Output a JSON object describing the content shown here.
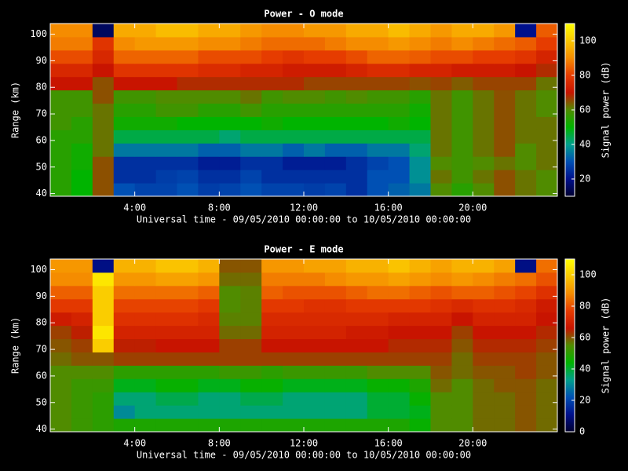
{
  "chart_data": [
    {
      "type": "heatmap",
      "title": "Power - O mode",
      "x_label": "Universal time - 09/05/2010 00:00:00 to 10/05/2010 00:00:00",
      "y_label": "Range (km)",
      "colorbar_label": "Signal power (dB)",
      "x_bins": [
        0,
        1,
        2,
        3,
        4,
        5,
        6,
        7,
        8,
        9,
        10,
        11,
        12,
        13,
        14,
        15,
        16,
        17,
        18,
        19,
        20,
        21,
        22,
        23,
        24
      ],
      "y_bins": [
        39,
        44,
        49,
        54,
        59,
        64,
        69,
        74,
        79,
        84,
        89,
        94,
        99,
        104
      ],
      "xlim": [
        0,
        24
      ],
      "ylim": [
        39,
        104
      ],
      "zlim": [
        10,
        110
      ],
      "xticks": [
        {
          "value": 4,
          "label": "4:00"
        },
        {
          "value": 8,
          "label": "8:00"
        },
        {
          "value": 12,
          "label": "12:00"
        },
        {
          "value": 16,
          "label": "16:00"
        },
        {
          "value": 20,
          "label": "20:00"
        }
      ],
      "yticks": [
        40,
        50,
        60,
        70,
        80,
        90,
        100
      ],
      "zticks": [
        20,
        40,
        60,
        80,
        100
      ],
      "colormap": [
        "#000030",
        "#00108c",
        "#0050b4",
        "#00a08c",
        "#00b400",
        "#508c00",
        "#c81400",
        "#e63c00",
        "#f58c00",
        "#fac800",
        "#ffff00"
      ],
      "z": [
        [
          55,
          50,
          65,
          30,
          28,
          28,
          30,
          27,
          28,
          30,
          28,
          28,
          27,
          28,
          25,
          30,
          32,
          35,
          60,
          55,
          60,
          65,
          62,
          60
        ],
        [
          55,
          50,
          65,
          25,
          25,
          27,
          28,
          25,
          25,
          28,
          25,
          25,
          25,
          25,
          25,
          30,
          30,
          38,
          62,
          58,
          62,
          65,
          62,
          60
        ],
        [
          55,
          52,
          65,
          25,
          25,
          25,
          25,
          22,
          22,
          25,
          25,
          22,
          22,
          22,
          25,
          28,
          30,
          38,
          60,
          58,
          60,
          62,
          60,
          62
        ],
        [
          55,
          52,
          62,
          35,
          35,
          35,
          35,
          32,
          32,
          35,
          35,
          32,
          35,
          32,
          32,
          35,
          35,
          42,
          62,
          58,
          62,
          65,
          60,
          62
        ],
        [
          55,
          55,
          62,
          45,
          45,
          45,
          45,
          45,
          42,
          45,
          45,
          45,
          45,
          45,
          45,
          45,
          45,
          45,
          62,
          58,
          62,
          65,
          62,
          62
        ],
        [
          58,
          55,
          62,
          52,
          52,
          52,
          50,
          50,
          50,
          50,
          52,
          50,
          50,
          50,
          50,
          50,
          52,
          50,
          62,
          58,
          62,
          65,
          62,
          62
        ],
        [
          58,
          58,
          62,
          55,
          55,
          58,
          58,
          55,
          55,
          58,
          55,
          55,
          55,
          55,
          55,
          55,
          55,
          52,
          62,
          58,
          62,
          65,
          62,
          60
        ],
        [
          58,
          58,
          65,
          58,
          58,
          60,
          60,
          60,
          60,
          62,
          58,
          60,
          60,
          58,
          60,
          58,
          58,
          55,
          62,
          58,
          62,
          65,
          62,
          60
        ],
        [
          70,
          70,
          65,
          70,
          70,
          70,
          68,
          68,
          68,
          68,
          68,
          68,
          66,
          66,
          66,
          66,
          66,
          65,
          66,
          64,
          66,
          66,
          66,
          62
        ],
        [
          75,
          75,
          70,
          78,
          78,
          78,
          78,
          76,
          76,
          74,
          74,
          72,
          72,
          72,
          74,
          76,
          76,
          74,
          74,
          72,
          72,
          72,
          70,
          68
        ],
        [
          82,
          82,
          75,
          85,
          85,
          85,
          85,
          82,
          82,
          82,
          80,
          78,
          80,
          80,
          82,
          85,
          85,
          84,
          82,
          82,
          80,
          80,
          78,
          74
        ],
        [
          88,
          88,
          78,
          90,
          92,
          92,
          92,
          90,
          90,
          88,
          86,
          86,
          86,
          88,
          90,
          90,
          92,
          90,
          88,
          90,
          88,
          86,
          84,
          80
        ],
        [
          90,
          90,
          15,
          95,
          95,
          98,
          98,
          95,
          95,
          92,
          90,
          90,
          92,
          92,
          95,
          95,
          98,
          95,
          92,
          95,
          95,
          92,
          20,
          84
        ]
      ]
    },
    {
      "type": "heatmap",
      "title": "Power - E mode",
      "x_label": "Universal time - 09/05/2010 00:00:00 to 10/05/2010 00:00:00",
      "y_label": "Range (km)",
      "colorbar_label": "Signal power (dB)",
      "x_bins": [
        0,
        1,
        2,
        3,
        4,
        5,
        6,
        7,
        8,
        9,
        10,
        11,
        12,
        13,
        14,
        15,
        16,
        17,
        18,
        19,
        20,
        21,
        22,
        23,
        24
      ],
      "y_bins": [
        39,
        44,
        49,
        54,
        59,
        64,
        69,
        74,
        79,
        84,
        89,
        94,
        99,
        104
      ],
      "xlim": [
        0,
        24
      ],
      "ylim": [
        39,
        104
      ],
      "zlim": [
        0,
        110
      ],
      "xticks": [
        {
          "value": 4,
          "label": "4:00"
        },
        {
          "value": 8,
          "label": "8:00"
        },
        {
          "value": 12,
          "label": "12:00"
        },
        {
          "value": 16,
          "label": "16:00"
        },
        {
          "value": 20,
          "label": "20:00"
        }
      ],
      "yticks": [
        40,
        50,
        60,
        70,
        80,
        90,
        100
      ],
      "zticks": [
        0,
        20,
        40,
        60,
        80,
        100
      ],
      "colormap": [
        "#000030",
        "#00108c",
        "#0050b4",
        "#00a08c",
        "#00b400",
        "#508c00",
        "#c81400",
        "#e63c00",
        "#f58c00",
        "#fac800",
        "#ffff00"
      ],
      "z": [
        [
          55,
          52,
          50,
          48,
          48,
          48,
          48,
          48,
          48,
          48,
          48,
          48,
          48,
          48,
          48,
          48,
          48,
          45,
          55,
          55,
          58,
          58,
          60,
          58
        ],
        [
          55,
          52,
          50,
          30,
          35,
          35,
          35,
          35,
          35,
          35,
          35,
          35,
          35,
          35,
          35,
          40,
          40,
          42,
          55,
          55,
          58,
          58,
          60,
          58
        ],
        [
          55,
          52,
          50,
          35,
          35,
          38,
          38,
          35,
          35,
          38,
          38,
          35,
          35,
          35,
          35,
          40,
          40,
          45,
          55,
          55,
          58,
          58,
          60,
          58
        ],
        [
          55,
          52,
          52,
          42,
          42,
          45,
          45,
          42,
          42,
          45,
          45,
          42,
          42,
          42,
          42,
          45,
          45,
          48,
          58,
          55,
          58,
          60,
          60,
          58
        ],
        [
          55,
          55,
          55,
          50,
          50,
          50,
          50,
          50,
          52,
          52,
          50,
          52,
          52,
          52,
          52,
          55,
          55,
          55,
          60,
          58,
          60,
          60,
          62,
          60
        ],
        [
          58,
          60,
          60,
          62,
          62,
          62,
          62,
          62,
          62,
          62,
          62,
          62,
          62,
          62,
          62,
          62,
          62,
          62,
          62,
          58,
          62,
          62,
          62,
          60
        ],
        [
          60,
          62,
          100,
          65,
          65,
          66,
          66,
          66,
          62,
          62,
          66,
          66,
          66,
          66,
          66,
          66,
          64,
          64,
          64,
          60,
          64,
          64,
          64,
          62
        ],
        [
          62,
          65,
          105,
          70,
          70,
          70,
          70,
          70,
          58,
          58,
          70,
          70,
          70,
          70,
          68,
          68,
          66,
          66,
          66,
          62,
          66,
          66,
          66,
          64
        ],
        [
          68,
          70,
          100,
          74,
          74,
          74,
          74,
          72,
          56,
          56,
          72,
          72,
          72,
          72,
          72,
          72,
          70,
          70,
          70,
          66,
          70,
          70,
          70,
          66
        ],
        [
          76,
          76,
          100,
          78,
          78,
          78,
          78,
          76,
          55,
          56,
          76,
          76,
          74,
          74,
          76,
          76,
          76,
          76,
          74,
          72,
          74,
          74,
          72,
          68
        ],
        [
          82,
          82,
          100,
          84,
          84,
          84,
          84,
          82,
          55,
          56,
          82,
          80,
          80,
          80,
          82,
          84,
          84,
          82,
          80,
          82,
          82,
          80,
          78,
          74
        ],
        [
          88,
          88,
          105,
          90,
          90,
          92,
          92,
          90,
          58,
          58,
          86,
          86,
          86,
          88,
          90,
          90,
          92,
          90,
          88,
          90,
          88,
          86,
          84,
          80
        ],
        [
          90,
          90,
          10,
          95,
          95,
          98,
          98,
          95,
          60,
          60,
          90,
          90,
          92,
          92,
          95,
          95,
          98,
          95,
          92,
          95,
          95,
          92,
          10,
          84
        ]
      ]
    }
  ]
}
